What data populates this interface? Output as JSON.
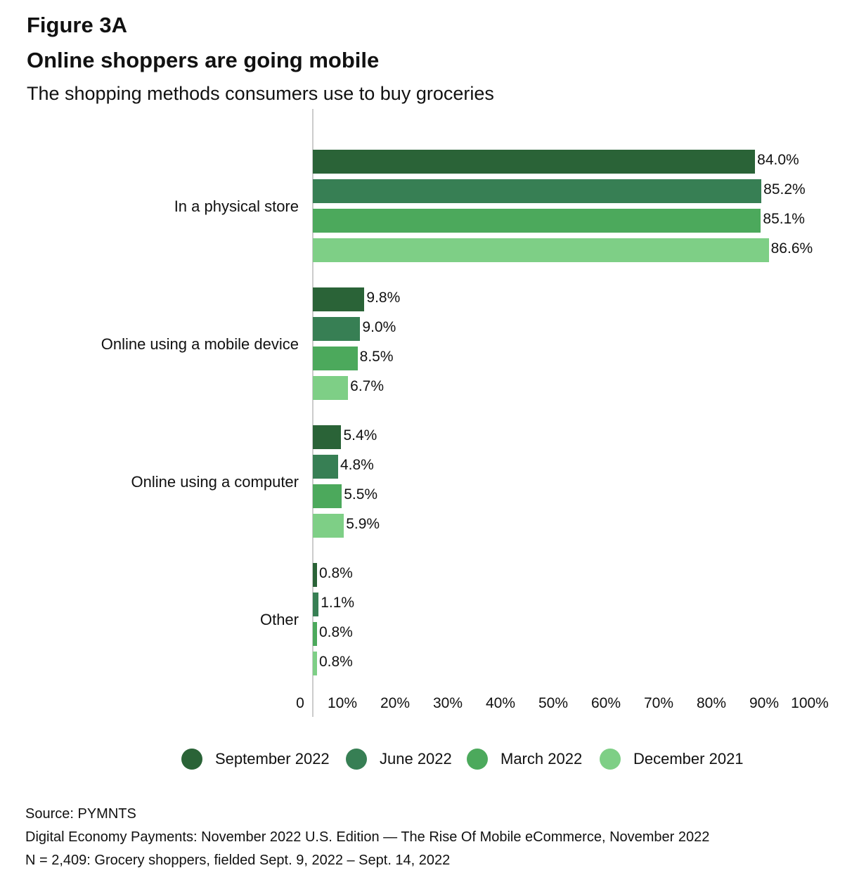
{
  "header": {
    "figure": "Figure 3A",
    "title": "Online shoppers are going mobile",
    "subtitle": "The shopping methods consumers use to buy groceries"
  },
  "chart_data": {
    "type": "bar",
    "orientation": "horizontal",
    "categories": [
      "In a physical store",
      "Online using a mobile device",
      "Online using a computer",
      "Other"
    ],
    "series": [
      {
        "name": "September 2022",
        "color": "#2a6337",
        "values": [
          84.0,
          9.8,
          5.4,
          0.8
        ],
        "labels": [
          "84.0%",
          "9.8%",
          "5.4%",
          "0.8%"
        ]
      },
      {
        "name": "June 2022",
        "color": "#377f54",
        "values": [
          85.2,
          9.0,
          4.8,
          1.1
        ],
        "labels": [
          "85.2%",
          "9.0%",
          "4.8%",
          "1.1%"
        ]
      },
      {
        "name": "March 2022",
        "color": "#4ca95c",
        "values": [
          85.1,
          8.5,
          5.5,
          0.8
        ],
        "labels": [
          "85.1%",
          "8.5%",
          "5.5%",
          "0.8%"
        ]
      },
      {
        "name": "December 2021",
        "color": "#7ecf86",
        "values": [
          86.6,
          6.7,
          5.9,
          0.8
        ],
        "labels": [
          "86.6%",
          "6.7%",
          "5.9%",
          "0.8%"
        ]
      }
    ],
    "xlim": [
      0,
      100
    ],
    "xticks": [
      "0",
      "10%",
      "20%",
      "30%",
      "40%",
      "50%",
      "60%",
      "70%",
      "80%",
      "90%",
      "100%"
    ],
    "legend_placement": "bottom",
    "grid": false
  },
  "footer": {
    "source": "Source: PYMNTS",
    "report": "Digital Economy Payments: November 2022 U.S. Edition — The Rise Of Mobile eCommerce, November 2022",
    "sample": "N = 2,409: Grocery shoppers, fielded Sept. 9, 2022 – Sept. 14, 2022"
  }
}
